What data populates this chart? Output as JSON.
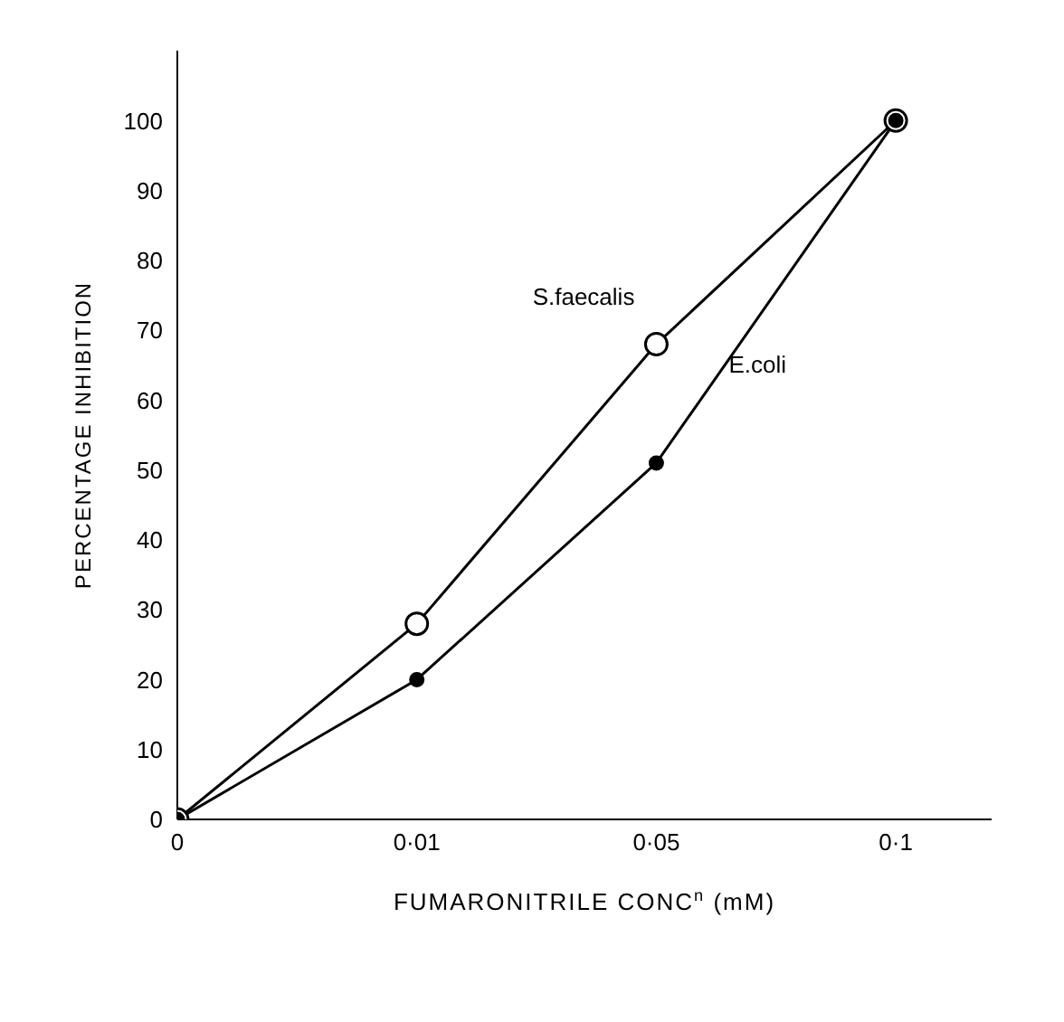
{
  "chart_data": {
    "type": "line",
    "xlabel": "FUMARONITRILE CONC$^{n}$ (mM)",
    "ylabel": "PERCENTAGE INHIBITION",
    "categories": [
      "0",
      "0·01",
      "0·05",
      "0·1"
    ],
    "series": [
      {
        "name": "S.faecalis",
        "color": "#000000",
        "values": [
          0,
          28,
          68,
          100
        ]
      },
      {
        "name": "E.coli",
        "color": "#000000",
        "values": [
          0,
          20,
          51,
          100
        ]
      }
    ],
    "ylim": [
      0,
      110
    ],
    "yticks": [
      0,
      10,
      20,
      30,
      40,
      50,
      60,
      70,
      80,
      90,
      100
    ],
    "grid": false,
    "legend": false,
    "marker": "circle",
    "line_style": "solid"
  }
}
